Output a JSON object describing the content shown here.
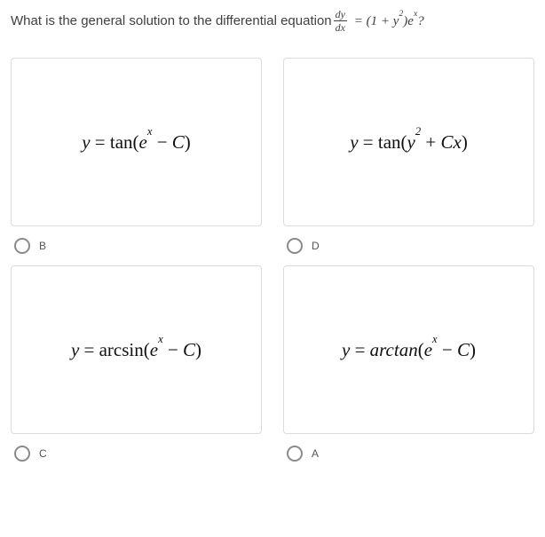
{
  "question": {
    "prefix": "What is the general solution to the differential equation ",
    "fraction": {
      "num": "dy",
      "den": "dx"
    },
    "rhs_html": "&nbsp;= (1 + <i>y</i><sup>2</sup>)<i>e</i><sup><i>x</i></sup>?"
  },
  "colors": {
    "text": "#404040",
    "card_border": "#dcdcdc",
    "radio_border": "#8a8a8a",
    "background": "#ffffff",
    "math_text": "#111111"
  },
  "options": [
    {
      "letter": "B",
      "math_html": "<i>y</i> <span class='sym'>=</span> <span class='fn'>tan</span><span class='sym'>(</span><i>e</i><sup>x</sup> <span class='sym'>&minus;</span> <i>C</i><span class='sym'>)</span>"
    },
    {
      "letter": "D",
      "math_html": "<i>y</i> <span class='sym'>=</span> <span class='fn'>tan</span><span class='sym'>(</span><i>y</i><sup>2</sup> <span class='sym'>+</span> <i>Cx</i><span class='sym'>)</span>"
    },
    {
      "letter": "C",
      "math_html": "<i>y</i> <span class='sym'>=</span> <span class='fn'>arcsin</span><span class='sym'>(</span><i>e</i><sup>x</sup> <span class='sym'>&minus;</span> <i>C</i><span class='sym'>)</span>"
    },
    {
      "letter": "A",
      "math_html": "<i>y</i> <span class='sym'>=</span> <i>arctan</i><span class='sym'>(</span><i>e</i><sup>x</sup> <span class='sym'>&minus;</span> <i>C</i><span class='sym'>)</span>"
    }
  ]
}
